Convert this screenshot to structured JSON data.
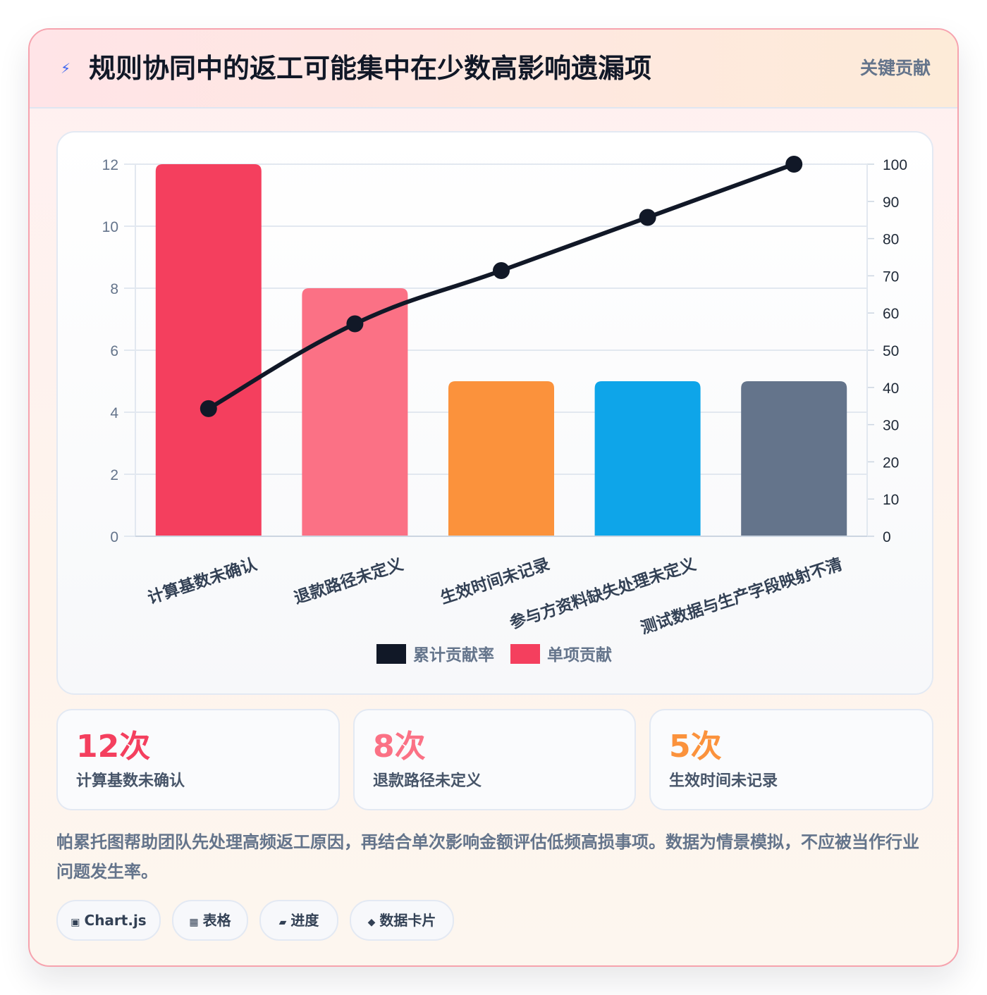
{
  "header": {
    "icon": "lightning-icon",
    "title": "规则协同中的返工可能集中在少数高影响遗漏项",
    "badge": "关键贡献"
  },
  "chart_data": {
    "type": "bar",
    "categories": [
      "计算基数未确认",
      "退款路径未定义",
      "生效时间未记录",
      "参与方资料缺失处理未定义",
      "测试数据与生产字段映射不清"
    ],
    "series": [
      {
        "name": "单项贡献",
        "kind": "bar",
        "axis": "left",
        "values": [
          12,
          8,
          5,
          5,
          5
        ],
        "colors": [
          "#f43f5e",
          "#fb7185",
          "#fb923c",
          "#0ea5e9",
          "#64748b"
        ]
      },
      {
        "name": "累计贡献率",
        "kind": "line",
        "axis": "right",
        "values": [
          34.3,
          57.1,
          71.4,
          85.7,
          100
        ],
        "color": "#111827"
      }
    ],
    "ylim_left": [
      0,
      12
    ],
    "yticks_left": [
      0,
      2,
      4,
      6,
      8,
      10,
      12
    ],
    "ylim_right": [
      0,
      100
    ],
    "yticks_right": [
      0,
      10,
      20,
      30,
      40,
      50,
      60,
      70,
      80,
      90,
      100
    ],
    "legend": {
      "position": "bottom",
      "items": [
        {
          "label": "累计贡献率",
          "color": "#111827"
        },
        {
          "label": "单项贡献",
          "color": "#f43f5e"
        }
      ]
    },
    "grid": true
  },
  "stats": [
    {
      "value": "12次",
      "label": "计算基数未确认",
      "color": "#f43f5e"
    },
    {
      "value": "8次",
      "label": "退款路径未定义",
      "color": "#fb7185"
    },
    {
      "value": "5次",
      "label": "生效时间未记录",
      "color": "#fb923c"
    }
  ],
  "note": "帕累托图帮助团队先处理高频返工原因，再结合单次影响金额评估低频高损事项。数据为情景模拟，不应被当作行业问题发生率。",
  "chips": [
    {
      "icon": "square-icon",
      "glyph": "▣",
      "label": "Chart.js"
    },
    {
      "icon": "table-icon",
      "glyph": "▦",
      "label": "表格"
    },
    {
      "icon": "progress-icon",
      "glyph": "▰",
      "label": "进度"
    },
    {
      "icon": "diamond-icon",
      "glyph": "◆",
      "label": "数据卡片"
    }
  ]
}
